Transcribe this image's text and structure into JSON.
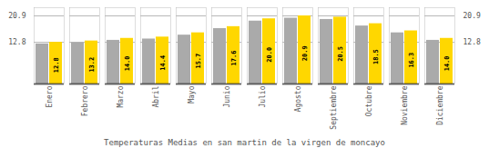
{
  "chart_data": {
    "type": "bar",
    "title": "Temperaturas Medias en san martin de la virgen de moncayo",
    "categories": [
      "Enero",
      "Febrero",
      "Marzo",
      "Abril",
      "Mayo",
      "Junio",
      "Julio",
      "Agosto",
      "Septiembre",
      "Octubre",
      "Noviembre",
      "Diciembre"
    ],
    "series": [
      {
        "color": "#AAAAAA",
        "values": [
          12.3,
          12.7,
          13.4,
          13.8,
          15.0,
          17.0,
          19.3,
          20.2,
          19.8,
          17.8,
          15.7,
          13.4
        ]
      },
      {
        "color": "#FFD700",
        "values": [
          12.8,
          13.2,
          14.0,
          14.4,
          15.7,
          17.6,
          20.0,
          20.9,
          20.5,
          18.5,
          16.3,
          14.0
        ],
        "value_labels": [
          "12.8",
          "13.2",
          "14.0",
          "14.4",
          "15.7",
          "17.6",
          "20.0",
          "20.9",
          "20.5",
          "18.5",
          "16.3",
          "14.0"
        ],
        "data_labels": true
      }
    ],
    "ylim": [
      0,
      23.408
    ],
    "yticks": [
      12.8,
      20.9
    ],
    "y2lim": [
      0,
      23.408
    ],
    "y2ticks": [
      12.8,
      20.9
    ],
    "grid": true
  }
}
